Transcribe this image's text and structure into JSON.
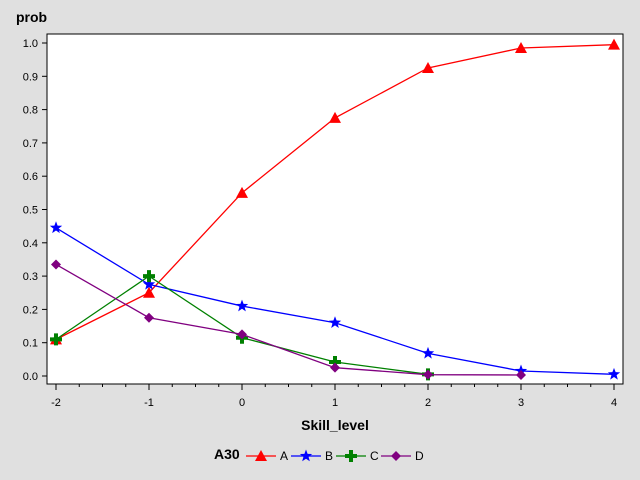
{
  "chart_data": {
    "type": "line",
    "ylabel": "prob",
    "xlabel": "Skill_level",
    "x": [
      -2,
      -1,
      0,
      1,
      2,
      3,
      4
    ],
    "xlim": [
      -2,
      4
    ],
    "ylim": [
      0,
      1.0
    ],
    "x_ticks": [
      "-2",
      "-1",
      "0",
      "1",
      "2",
      "3",
      "4"
    ],
    "y_ticks": [
      "0.0",
      "0.1",
      "0.2",
      "0.3",
      "0.4",
      "0.5",
      "0.6",
      "0.7",
      "0.8",
      "0.9",
      "1.0"
    ],
    "grid": false,
    "legend": {
      "title": "A30",
      "position": "bottom"
    },
    "series": [
      {
        "name": "A",
        "color": "#ff0000",
        "marker": "triangle",
        "x": [
          -2,
          -1,
          0,
          1,
          2,
          3,
          4
        ],
        "values": [
          0.11,
          0.25,
          0.55,
          0.775,
          0.925,
          0.985,
          0.995
        ]
      },
      {
        "name": "B",
        "color": "#0000ff",
        "marker": "star",
        "x": [
          -2,
          -1,
          0,
          1,
          2,
          3,
          4
        ],
        "values": [
          0.445,
          0.275,
          0.21,
          0.16,
          0.068,
          0.015,
          0.005
        ]
      },
      {
        "name": "C",
        "color": "#008000",
        "marker": "plus",
        "x": [
          -2,
          -1,
          0,
          1,
          2
        ],
        "values": [
          0.11,
          0.3,
          0.115,
          0.042,
          0.005
        ]
      },
      {
        "name": "D",
        "color": "#800080",
        "marker": "diamond",
        "x": [
          -2,
          -1,
          0,
          1,
          2,
          3
        ],
        "values": [
          0.335,
          0.175,
          0.125,
          0.025,
          0.004,
          0.003
        ]
      }
    ]
  }
}
